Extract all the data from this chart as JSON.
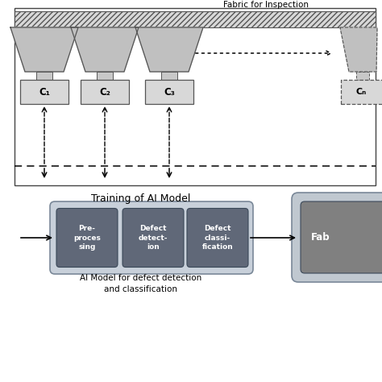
{
  "bg_color": "#ffffff",
  "top_label": "Fabric for Inspection",
  "fabric_color": "#d8d8d8",
  "trapezoid_fill": "#c0c0c0",
  "trapezoid_edge": "#555555",
  "camera_box_fill": "#d8d8d8",
  "camera_box_edge": "#555555",
  "camera_labels": [
    "C₁",
    "C₂",
    "C₃",
    "Cₙ"
  ],
  "bottom_title": "Training of AI Model",
  "bottom_sub": "AI Model for defect detection\nand classification",
  "outer_box_fill": "#c8d0da",
  "outer_box_edge": "#7a8898",
  "inner_box_fill": "#606878",
  "inner_box_edge": "#3a4858",
  "ai_labels": [
    "Pre-\nproces\nsing",
    "Defect\ndetect-\nion",
    "Defect\nclassi-\nfication"
  ],
  "right_outer_fill": "#c0c8d0",
  "right_outer_edge": "#7a8898",
  "right_inner_fill": "#808080",
  "right_inner_edge": "#3a4858",
  "fab_label": "Fab"
}
